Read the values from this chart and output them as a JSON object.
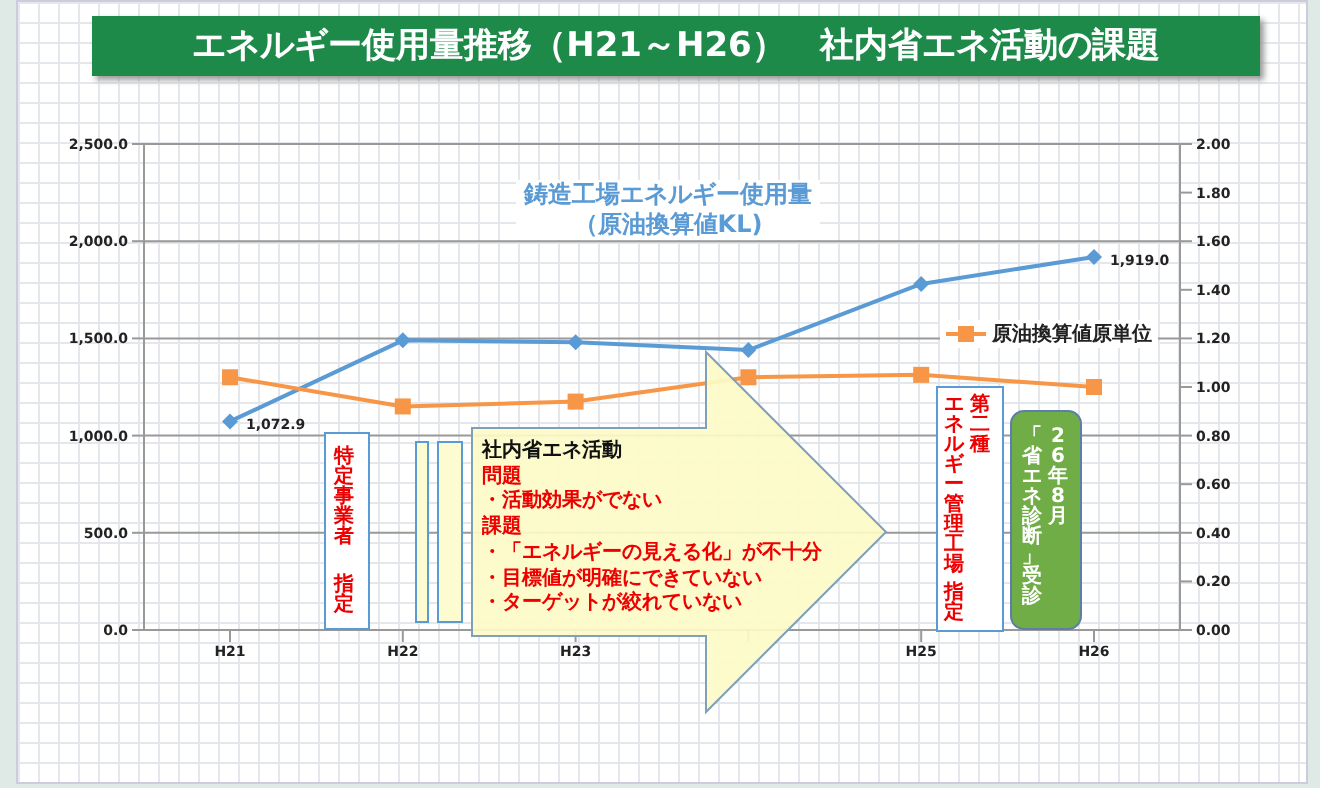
{
  "chart_data": {
    "type": "line",
    "title": "エネルギー使用量推移（H21～H26）　社内省エネ活動の課題",
    "categories": [
      "H21",
      "H22",
      "H23",
      null,
      "H25",
      "H26"
    ],
    "series": [
      {
        "name": "鋳造工場エネルギー使用量（原油換算値KL)",
        "color": "#5b9bd5",
        "marker": "diamond",
        "values": [
          1072.9,
          1490,
          1480,
          1440,
          1780,
          1919.0
        ],
        "value_labels": [
          "1,072.9",
          null,
          null,
          null,
          null,
          "1,919.0"
        ]
      },
      {
        "name": "原油換算値原単位",
        "color": "#f79646",
        "marker": "square",
        "axis": "y2",
        "values": [
          1.04,
          0.92,
          0.94,
          1.04,
          1.05,
          1.0
        ]
      }
    ],
    "ylim": [
      0,
      2500
    ],
    "yticks": [
      {
        "value": 0,
        "label": "0.0"
      },
      {
        "value": 500,
        "label": "500.0"
      },
      {
        "value": 1000,
        "label": "1,000.0"
      },
      {
        "value": 1500,
        "label": "1,500.0"
      },
      {
        "value": 2000,
        "label": "2,000.0"
      },
      {
        "value": 2500,
        "label": "2,500.0"
      }
    ],
    "y2lim": [
      0,
      2
    ],
    "y2ticks": [
      {
        "value": 0,
        "label": "0.00"
      },
      {
        "value": 0.2,
        "label": "0.20"
      },
      {
        "value": 0.4,
        "label": "0.40"
      },
      {
        "value": 0.6,
        "label": "0.60"
      },
      {
        "value": 0.8,
        "label": "0.80"
      },
      {
        "value": 1,
        "label": "1.00"
      },
      {
        "value": 1.2,
        "label": "1.20"
      },
      {
        "value": 1.4,
        "label": "1.40"
      },
      {
        "value": 1.6,
        "label": "1.60"
      },
      {
        "value": 1.8,
        "label": "1.80"
      },
      {
        "value": 2,
        "label": "2.00"
      }
    ],
    "grid": "y",
    "legend": "top right",
    "line_style": "solid",
    "annotations": [
      "特定事業者",
      "指定",
      "社内省エネ活動",
      "問題",
      "・活動効果がでない",
      "課題",
      "・「エネルギーの見える化」が不十分",
      "・目標値が明確にできていない",
      "・ターゲットが絞れていない",
      "第二種",
      "エネルギー管理工場",
      "指定",
      "26年8月",
      "「省エネ診断」受診"
    ]
  }
}
